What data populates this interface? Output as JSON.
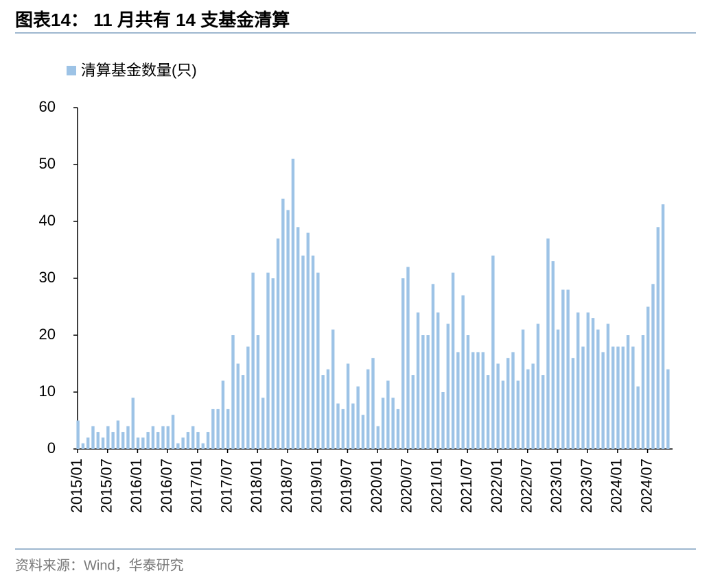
{
  "chart_data": {
    "type": "bar",
    "title": "图表14： 11 月共有 14 支基金清算",
    "source": "资料来源：Wind，华泰研究",
    "categories": [
      "2015/01",
      null,
      null,
      null,
      null,
      null,
      "2015/07",
      null,
      null,
      null,
      null,
      null,
      "2016/01",
      null,
      null,
      null,
      null,
      null,
      "2016/07",
      null,
      null,
      null,
      null,
      null,
      "2017/01",
      null,
      null,
      null,
      null,
      null,
      "2017/07",
      null,
      null,
      null,
      null,
      null,
      "2018/01",
      null,
      null,
      null,
      null,
      null,
      "2018/07",
      null,
      null,
      null,
      null,
      null,
      "2019/01",
      null,
      null,
      null,
      null,
      null,
      "2019/07",
      null,
      null,
      null,
      null,
      null,
      "2020/01",
      null,
      null,
      null,
      null,
      null,
      "2020/07",
      null,
      null,
      null,
      null,
      null,
      "2021/01",
      null,
      null,
      null,
      null,
      null,
      "2021/07",
      null,
      null,
      null,
      null,
      null,
      "2022/01",
      null,
      null,
      null,
      null,
      null,
      "2022/07",
      null,
      null,
      null,
      null,
      null,
      "2023/01",
      null,
      null,
      null,
      null,
      null,
      "2023/07",
      null,
      null,
      null,
      null,
      null,
      "2024/01",
      null,
      null,
      null,
      null,
      null,
      "2024/07",
      null,
      null,
      null,
      null
    ],
    "series": [
      {
        "name": "清算基金数量(只)",
        "color": "#9dc3e6",
        "values": [
          5,
          1,
          2,
          4,
          3,
          2,
          4,
          3,
          5,
          3,
          4,
          9,
          2,
          2,
          3,
          4,
          3,
          4,
          4,
          6,
          1,
          2,
          3,
          4,
          3,
          1,
          3,
          7,
          7,
          12,
          7,
          20,
          15,
          13,
          18,
          31,
          20,
          9,
          31,
          30,
          37,
          44,
          42,
          51,
          39,
          34,
          38,
          34,
          31,
          13,
          14,
          21,
          8,
          7,
          15,
          8,
          11,
          6,
          14,
          16,
          4,
          9,
          12,
          9,
          7,
          30,
          32,
          13,
          24,
          20,
          20,
          29,
          24,
          10,
          22,
          31,
          17,
          27,
          20,
          17,
          17,
          17,
          13,
          34,
          15,
          12,
          16,
          17,
          12,
          21,
          14,
          15,
          22,
          13,
          37,
          33,
          21,
          28,
          28,
          16,
          24,
          18,
          24,
          23,
          21,
          17,
          22,
          18,
          18,
          18,
          20,
          18,
          11,
          20,
          25,
          29,
          39,
          43,
          14
        ]
      }
    ],
    "ylim": [
      0,
      60
    ],
    "yticks": [
      0,
      10,
      20,
      30,
      40,
      50,
      60
    ]
  }
}
